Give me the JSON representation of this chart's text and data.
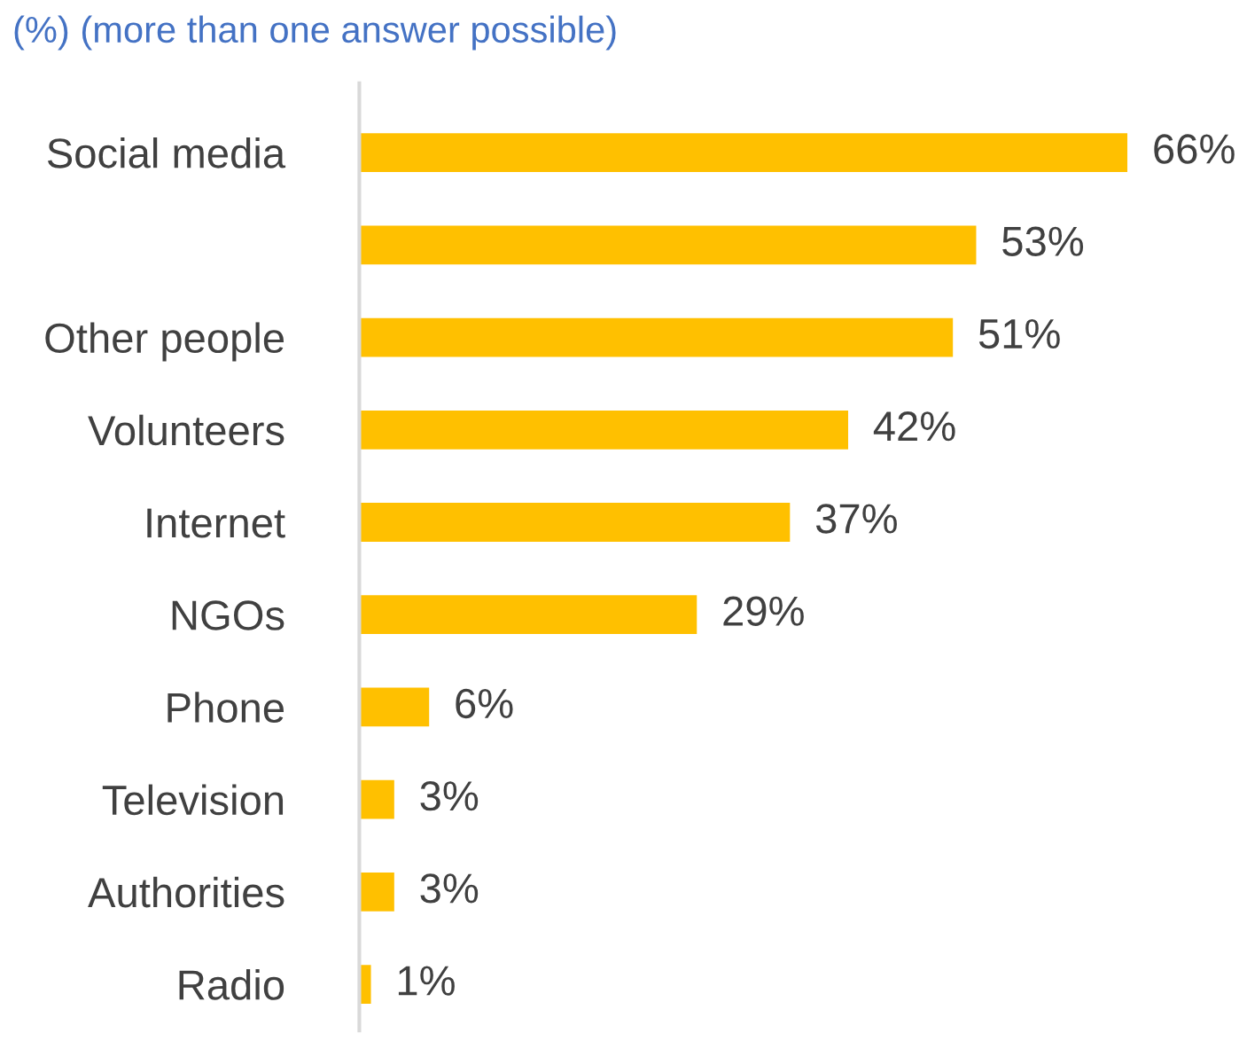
{
  "chart_data": {
    "type": "bar",
    "orientation": "horizontal",
    "title": "(%) (more than one answer possible)",
    "categories": [
      "Social media",
      null,
      "Other people",
      "Volunteers",
      "Internet",
      "NGOs",
      "Phone",
      "Television",
      "Authorities",
      "Radio"
    ],
    "values": [
      66,
      53,
      51,
      42,
      37,
      29,
      6,
      3,
      3,
      1
    ],
    "value_labels": [
      "66%",
      "53%",
      "51%",
      "42%",
      "37%",
      "29%",
      "6%",
      "3%",
      "3%",
      "1%"
    ],
    "color": "#ffc000",
    "grid": false,
    "legend": false,
    "tick_labels": "y"
  }
}
